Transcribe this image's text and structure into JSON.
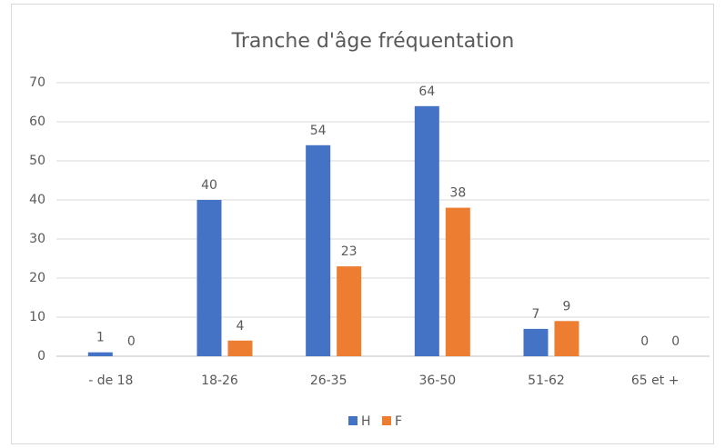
{
  "chart_data": {
    "type": "bar",
    "title": "Tranche d'âge fréquentation",
    "categories": [
      "- de 18",
      "18-26",
      "26-35",
      "36-50",
      "51-62",
      "65 et +"
    ],
    "series": [
      {
        "name": "H",
        "color": "#4472c4",
        "values": [
          1,
          40,
          54,
          64,
          7,
          0
        ]
      },
      {
        "name": "F",
        "color": "#ed7d31",
        "values": [
          0,
          4,
          23,
          38,
          9,
          0
        ]
      }
    ],
    "ylim": [
      0,
      70
    ],
    "yticks": [
      0,
      10,
      20,
      30,
      40,
      50,
      60,
      70
    ],
    "grid": true,
    "legend": "bottom"
  }
}
